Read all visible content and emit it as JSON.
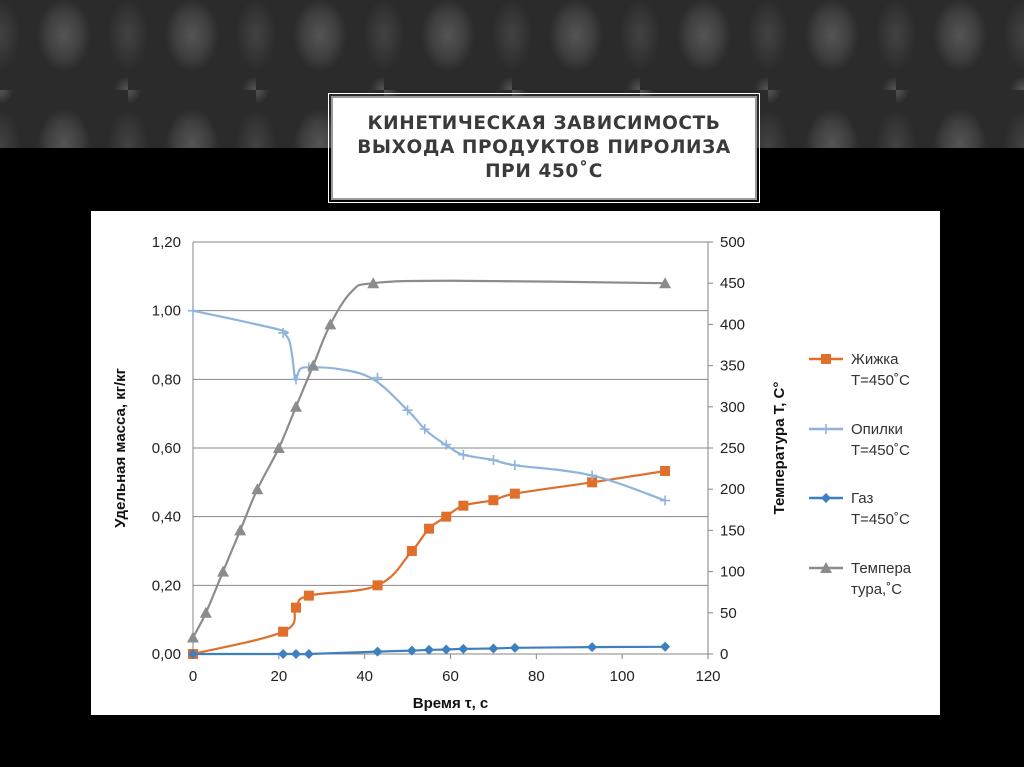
{
  "slide": {
    "title": "Кинетическая зависимость\nвыхода продуктов пиролиза\nпри 450˚С"
  },
  "chart_data": {
    "type": "line",
    "title": "",
    "xlabel": "Время τ, с",
    "ylabel": "Удельная масса, кг/кг",
    "y2label": "Температура T, C°",
    "xlim": [
      0,
      120
    ],
    "ylim": [
      0,
      1.2
    ],
    "y2lim": [
      0,
      500
    ],
    "xticks": [
      "0",
      "20",
      "40",
      "60",
      "80",
      "100",
      "120"
    ],
    "yticks": [
      "0,00",
      "0,20",
      "0,40",
      "0,60",
      "0,80",
      "1,00",
      "1,20"
    ],
    "y2ticks": [
      "0",
      "50",
      "100",
      "150",
      "200",
      "250",
      "300",
      "350",
      "400",
      "450",
      "500"
    ],
    "grid": true,
    "legend_position": "right",
    "series": [
      {
        "name": "Жижка Т=450˚С",
        "legend_lines": [
          "Жижка",
          "Т=450˚С"
        ],
        "axis": "left",
        "color": "#e06f2c",
        "marker": "square",
        "x": [
          0,
          21,
          24,
          27,
          43,
          51,
          55,
          59,
          63,
          70,
          75,
          93,
          110
        ],
        "y": [
          0.0,
          0.065,
          0.135,
          0.17,
          0.2,
          0.3,
          0.365,
          0.4,
          0.432,
          0.448,
          0.467,
          0.5,
          0.533
        ]
      },
      {
        "name": "Опилки Т=450˚С",
        "legend_lines": [
          "Опилки",
          "Т=450˚С"
        ],
        "axis": "left",
        "color": "#8fb4dc",
        "marker": "plus",
        "x": [
          0,
          20,
          21.5,
          22.5,
          23.2,
          23.8,
          24.3,
          25,
          27,
          34,
          42,
          50,
          54,
          57,
          60,
          63,
          70,
          75,
          93,
          110
        ],
        "y": [
          1.0,
          0.945,
          0.93,
          0.91,
          0.86,
          0.8,
          0.81,
          0.83,
          0.835,
          0.83,
          0.8,
          0.71,
          0.655,
          0.625,
          0.6,
          0.58,
          0.565,
          0.55,
          0.52,
          0.447
        ],
        "marker_x": [
          0,
          21,
          24,
          27,
          43,
          50,
          54,
          59,
          63,
          70,
          75,
          93,
          110
        ],
        "marker_y": [
          1.0,
          0.935,
          0.8,
          0.835,
          0.805,
          0.71,
          0.655,
          0.61,
          0.58,
          0.565,
          0.55,
          0.52,
          0.447
        ]
      },
      {
        "name": "Газ Т=450˚С",
        "legend_lines": [
          "Газ",
          "Т=450˚С"
        ],
        "axis": "left",
        "color": "#3e7fbf",
        "marker": "diamond",
        "x": [
          0,
          21,
          24,
          27,
          43,
          51,
          55,
          59,
          63,
          70,
          75,
          93,
          110
        ],
        "y": [
          0.0,
          0.0,
          0.0,
          0.0,
          0.007,
          0.01,
          0.012,
          0.013,
          0.015,
          0.016,
          0.018,
          0.02,
          0.021
        ]
      },
      {
        "name": "Температура,˚С",
        "legend_lines": [
          "Темпера",
          "тура,˚С"
        ],
        "axis": "right",
        "color": "#8c8c8c",
        "marker": "triangle",
        "x": [
          0,
          3,
          7,
          11,
          15,
          20,
          24,
          28,
          32,
          42,
          110
        ],
        "y": [
          20,
          50,
          100,
          150,
          200,
          250,
          300,
          350,
          400,
          450,
          450
        ],
        "line_x": [
          0,
          3,
          7,
          11,
          15,
          20,
          24,
          28,
          32,
          37,
          42,
          60,
          110
        ],
        "line_y": [
          20,
          50,
          100,
          150,
          200,
          250,
          300,
          350,
          400,
          440,
          450,
          453,
          450
        ]
      }
    ]
  }
}
